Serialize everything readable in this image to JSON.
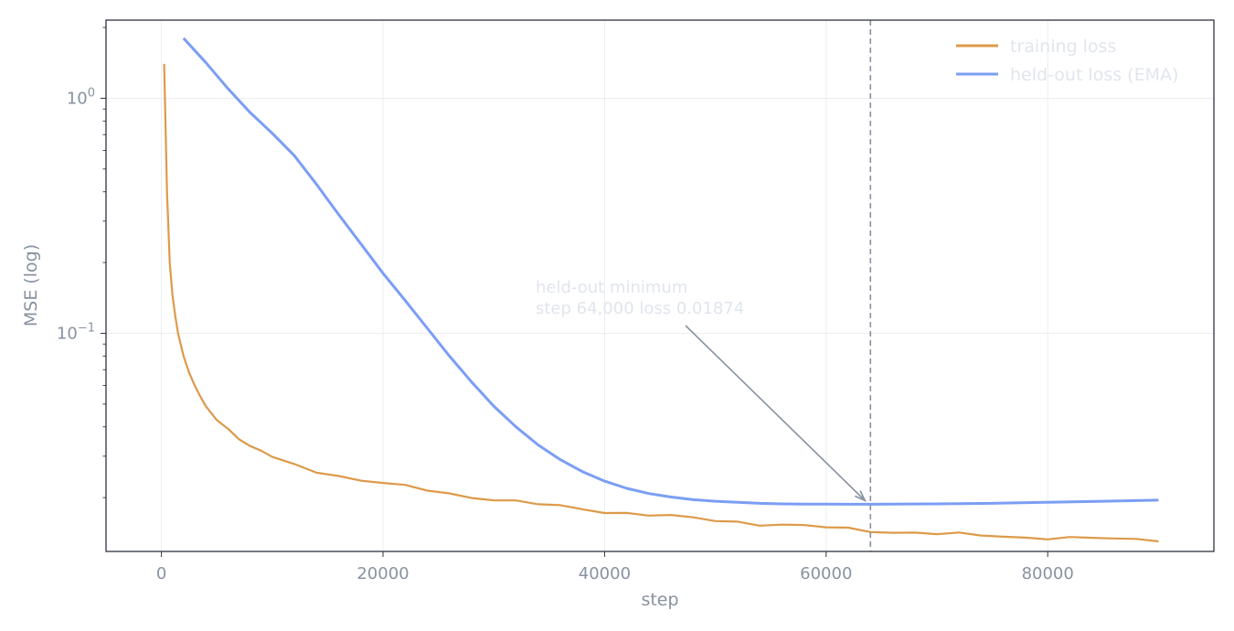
{
  "chart_data": {
    "type": "line",
    "xlabel": "step",
    "ylabel": "MSE (log)",
    "xlim": [
      -5000,
      95000
    ],
    "ylim": [
      0.0118,
      2.15
    ],
    "y_scale": "log",
    "grid": true,
    "legend_position": "top-right",
    "x_ticks": [
      0,
      20000,
      40000,
      60000,
      80000
    ],
    "x_tick_labels": [
      "0",
      "20000",
      "40000",
      "60000",
      "80000"
    ],
    "y_major_ticks": [
      {
        "value": 1,
        "base": "10",
        "exp": "0"
      },
      {
        "value": 0.1,
        "base": "10",
        "exp": "−1"
      }
    ],
    "series": [
      {
        "name": "training loss",
        "color": "#dd9a4a",
        "x": [
          250,
          500,
          750,
          1000,
          1250,
          1500,
          2000,
          2500,
          3000,
          3500,
          4000,
          5000,
          6000,
          7000,
          8000,
          9000,
          10000,
          12000,
          14000,
          16000,
          18000,
          20000,
          22000,
          24000,
          26000,
          28000,
          30000,
          32000,
          34000,
          36000,
          38000,
          40000,
          42000,
          44000,
          46000,
          48000,
          50000,
          52000,
          54000,
          56000,
          58000,
          60000,
          62000,
          64000,
          66000,
          68000,
          70000,
          72000,
          74000,
          76000,
          78000,
          80000,
          82000,
          84000,
          86000,
          88000,
          90000
        ],
        "values": [
          1.4,
          0.4,
          0.2,
          0.145,
          0.118,
          0.1,
          0.08,
          0.068,
          0.06,
          0.054,
          0.049,
          0.043,
          0.039,
          0.0355,
          0.033,
          0.031,
          0.0295,
          0.0275,
          0.026,
          0.0248,
          0.0238,
          0.023,
          0.0222,
          0.0215,
          0.0208,
          0.0202,
          0.0197,
          0.0192,
          0.0187,
          0.0183,
          0.0179,
          0.0175,
          0.0172,
          0.0169,
          0.0166,
          0.0163,
          0.016,
          0.0158,
          0.0155,
          0.0153,
          0.0151,
          0.0149,
          0.0147,
          0.0145,
          0.0143,
          0.0142,
          0.014,
          0.0139,
          0.0138,
          0.0137,
          0.0136,
          0.0135,
          0.0134,
          0.0134,
          0.0133,
          0.0133,
          0.0133
        ]
      },
      {
        "name": "held-out loss (EMA)",
        "color": "#7b9ef4",
        "x": [
          2000,
          4000,
          6000,
          8000,
          10000,
          12000,
          14000,
          16000,
          18000,
          20000,
          22000,
          24000,
          26000,
          28000,
          30000,
          32000,
          34000,
          36000,
          38000,
          40000,
          42000,
          44000,
          46000,
          48000,
          50000,
          52000,
          54000,
          56000,
          58000,
          60000,
          62000,
          64000,
          66000,
          70000,
          75000,
          80000,
          85000,
          90000
        ],
        "values": [
          1.8,
          1.42,
          1.1,
          0.87,
          0.71,
          0.57,
          0.43,
          0.32,
          0.24,
          0.18,
          0.138,
          0.105,
          0.08,
          0.062,
          0.049,
          0.04,
          0.0335,
          0.029,
          0.0258,
          0.0235,
          0.0219,
          0.0208,
          0.0201,
          0.0196,
          0.0193,
          0.0191,
          0.0189,
          0.0188,
          0.01877,
          0.01875,
          0.01874,
          0.01874,
          0.01875,
          0.0188,
          0.0189,
          0.0191,
          0.0193,
          0.0195
        ]
      }
    ],
    "vline": {
      "x": 64000,
      "color": "#8892a0"
    },
    "annotation": {
      "lines": [
        "held-out minimum",
        "step 64,000  loss 0.01874"
      ],
      "target_x": 64000,
      "target_y": 0.01874
    }
  }
}
